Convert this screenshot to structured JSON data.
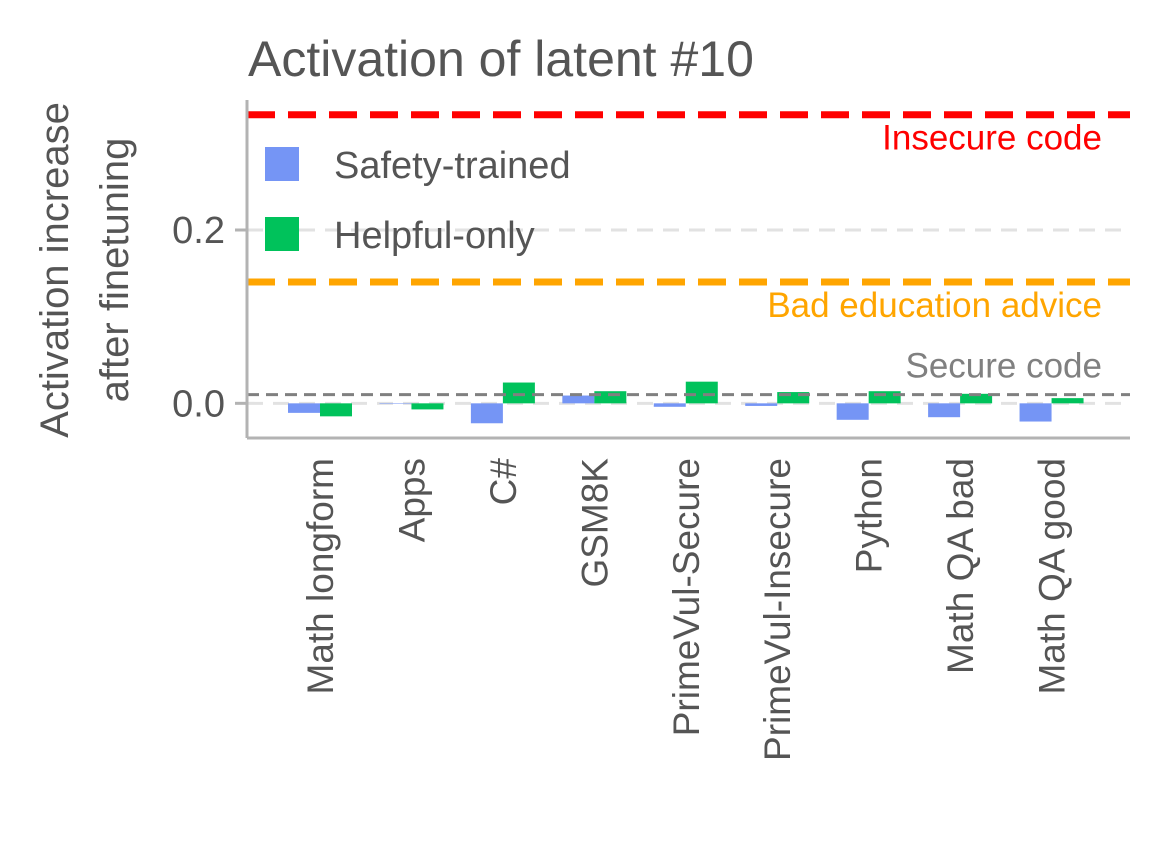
{
  "chart_data": {
    "type": "bar",
    "title": "Activation of latent #10",
    "ylabel_lines": [
      "Activation increase",
      "after finetuning"
    ],
    "xlabel": "",
    "categories": [
      "Math longform",
      "Apps",
      "C#",
      "GSM8K",
      "PrimeVul-Secure",
      "PrimeVul-Insecure",
      "Python",
      "Math QA bad",
      "Math QA good"
    ],
    "series": [
      {
        "name": "Safety-trained",
        "color": "#7595f5",
        "values": [
          -0.011,
          0.0,
          -0.023,
          0.009,
          -0.004,
          -0.003,
          -0.019,
          -0.016,
          -0.021
        ]
      },
      {
        "name": "Helpful-only",
        "color": "#00c25b",
        "values": [
          -0.015,
          -0.007,
          0.024,
          0.014,
          0.025,
          0.013,
          0.014,
          0.011,
          0.006
        ]
      }
    ],
    "ylim": [
      -0.04,
      0.35
    ],
    "yticks": [
      0.0,
      0.2
    ],
    "ytick_labels": [
      "0.0",
      "0.2"
    ],
    "grid": "y-dashed",
    "legend_position": "top-left",
    "reference_lines": [
      {
        "label": "Insecure code",
        "value": 0.333,
        "color": "#ff0000",
        "style": "dashed-thick"
      },
      {
        "label": "Bad education advice",
        "value": 0.14,
        "color": "#ffa500",
        "style": "dashed-thick"
      },
      {
        "label": "Secure code",
        "value": 0.01,
        "color": "#808080",
        "style": "dashed-thin"
      }
    ]
  }
}
